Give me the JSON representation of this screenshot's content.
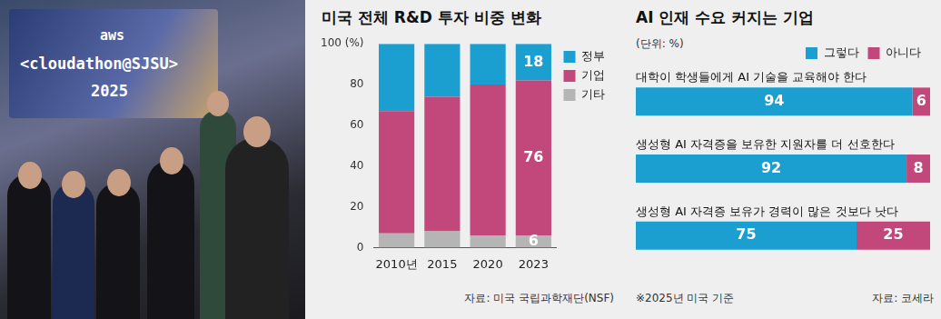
{
  "photo": {
    "texts": [
      "aws",
      "<cloudathon@SJSU>",
      "2025"
    ]
  },
  "chart_data": [
    {
      "type": "bar",
      "title": "미국 전체 R&D 투자 비중 변화",
      "categories": [
        "2010년",
        "2015",
        "2020",
        "2023"
      ],
      "stacked": true,
      "grid": false,
      "legend": "right",
      "data_labels": true,
      "ylim": [
        0,
        100
      ],
      "yticks": [
        0,
        20,
        40,
        60,
        80,
        {
          "value": 100,
          "label": "100 (%)"
        }
      ],
      "series": [
        {
          "name": "정부",
          "color": "#1a9fd0",
          "values": [
            33,
            26,
            20,
            18
          ],
          "value_labels": [
            null,
            null,
            null,
            "18"
          ]
        },
        {
          "name": "기업",
          "color": "#c2477a",
          "values": [
            60,
            66,
            74,
            76
          ],
          "value_labels": [
            null,
            null,
            null,
            "76"
          ]
        },
        {
          "name": "기타",
          "color": "#b5b5b5",
          "values": [
            7,
            8,
            6,
            6
          ],
          "value_labels": [
            null,
            null,
            null,
            "6"
          ]
        }
      ],
      "source": "자료: 미국 국립과학재단(NSF)"
    },
    {
      "type": "bar",
      "orientation": "horizontal",
      "title": "AI 인재 수요 커지는 기업",
      "subtitle": "(단위: %)",
      "categories": [
        "대학이 학생들에게 AI 기술을 교육해야 한다",
        "생성형 AI 자격증을 보유한 지원자를 더 선호한다",
        "생성형 AI 자격증 보유가 경력이 많은 것보다 낫다"
      ],
      "stacked": true,
      "grid": false,
      "legend": "top",
      "data_labels": true,
      "tick_labels": false,
      "xlim": [
        0,
        100
      ],
      "series": [
        {
          "name": "그렇다",
          "color": "#1a9fd0",
          "values": [
            94,
            92,
            75
          ]
        },
        {
          "name": "아니다",
          "color": "#c2477a",
          "values": [
            6,
            8,
            25
          ]
        }
      ],
      "note": "※2025년 미국 기준",
      "source": "자료: 코세라"
    }
  ]
}
